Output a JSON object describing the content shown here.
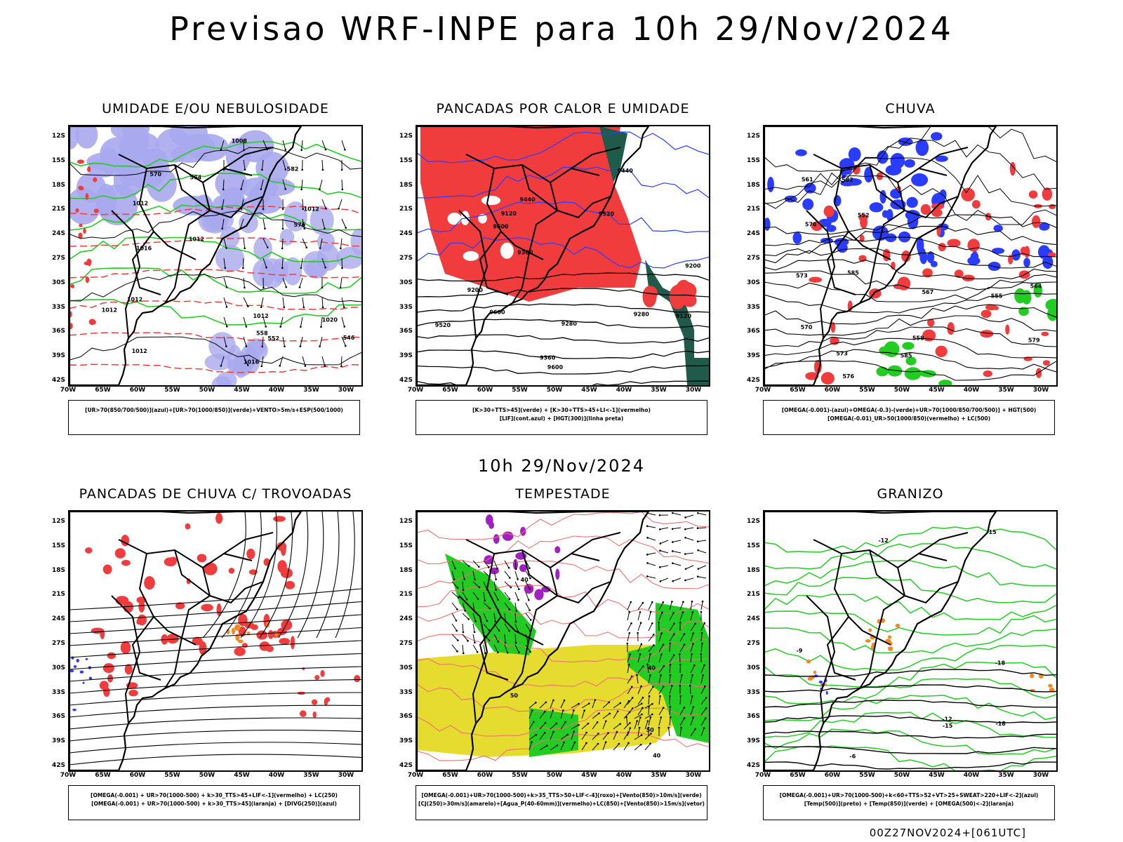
{
  "header": {
    "title": "Previsao WRF-INPE  para 10h 29/Nov/2024"
  },
  "middle": {
    "subtitle": "10h 29/Nov/2024"
  },
  "footer": {
    "run_label": "00Z27NOV2024+[061UTC]"
  },
  "axes": {
    "lat_labels": [
      "12S",
      "15S",
      "18S",
      "21S",
      "24S",
      "27S",
      "30S",
      "33S",
      "36S",
      "39S",
      "42S"
    ],
    "lon_labels": [
      "70W",
      "65W",
      "60W",
      "55W",
      "50W",
      "45W",
      "40W",
      "35W",
      "30W"
    ]
  },
  "panels": [
    {
      "title": "UMIDADE E/OU NEBULOSIDADE",
      "legend": [
        "[UR>70(850/700/500)](azul)+[UR>70(1000/850)](verde)+VENTO>5m/s+ESP(500/1000)"
      ],
      "contour_labels": [
        "1012",
        "1012",
        "1012",
        "1012",
        "1016",
        "1020",
        "1012",
        "1008",
        "1016",
        "1012",
        "1012",
        "570",
        "576",
        "582",
        "564",
        "558",
        "552",
        "546"
      ]
    },
    {
      "title": "PANCADAS POR CALOR E UMIDADE",
      "legend": [
        "[K>30+TTS>45](verde) + [K>30+TTS>45+LI<-1](vermelho)",
        "[LIF](cont.azul) + [HGT(300)](linha preta)"
      ],
      "contour_labels": [
        "9600",
        "9600",
        "9520",
        "9440",
        "9360",
        "9280",
        "9200",
        "9120",
        "9520",
        "9440",
        "9360",
        "9280",
        "9200",
        "9120",
        "9600"
      ]
    },
    {
      "title": "CHUVA",
      "legend": [
        "[OMEGA(-0.001)-(azul)+OMEGA(-0.3)-(verde)+UR>70(1000/850/700/500)] + HGT(500)",
        "[OMEGA(-0.01)_UR>50(1000/850)(vermelho) + LC(500)"
      ],
      "contour_labels": [
        "585",
        "582",
        "579",
        "576",
        "573",
        "570",
        "567",
        "564",
        "561",
        "558",
        "555",
        "552",
        "585",
        "576",
        "573"
      ]
    },
    {
      "title": "PANCADAS DE CHUVA C/ TROVOADAS",
      "legend": [
        "[OMEGA(-0.001) + UR>70(1000-500) + k>30_TTS>45+LIF<-1](vermelho) + LC(250)",
        "[OMEGA(-0.001) + UR>70(1000-500) + k>30_TTS>45](laranja) + [DIVG(250)](azul)"
      ],
      "contour_labels": []
    },
    {
      "title": "TEMPESTADE",
      "legend": [
        "[OMEGA(-0.001)+UR>70(1000-500)+k>35_TTS>50+LIF<-4](roxo)+[Vento(850)>10m/s](verde)",
        "[CJ(250)>30m/s](amarelo)+[Agua_P(40-60mm)](vermelho)+LC(850)+[Vento(850)>15m/s](vetor)"
      ],
      "contour_labels": [
        "40",
        "40",
        "40",
        "50",
        "50"
      ]
    },
    {
      "title": "GRANIZO",
      "legend": [
        "[OMEGA(-0.001)+UR>70(1000-500)+k<60+TTS>52+VT>25+SWEAT>220+LIF<-2](azul)",
        "[Temp(500)](preto) + [Temp(850)](verde) + [OMEGA(500)<-2](laranja)"
      ],
      "contour_labels": [
        "-12",
        "-12",
        "-15",
        "-18",
        "-15",
        "-18",
        "-6",
        "-9"
      ]
    }
  ],
  "colors": {
    "red": "#f03c3c",
    "blue": "#2a3cff",
    "green": "#22cc22",
    "lavender": "#a9a9ee",
    "darkgreen": "#1f5a4a",
    "yellow": "#e6dc30",
    "purple": "#a020c0",
    "orange": "#f08a24",
    "lightred": "#f07070"
  }
}
